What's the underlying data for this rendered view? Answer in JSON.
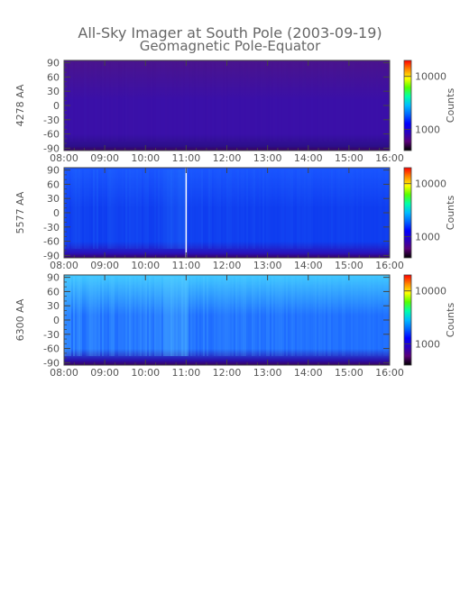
{
  "chart_data": {
    "type": "heatmap",
    "title": "All-Sky Imager at South Pole (2003-09-19)",
    "subtitle": "Geomagnetic Pole-Equator",
    "x_tick_labels": [
      "08:00",
      "09:00",
      "10:00",
      "11:00",
      "12:00",
      "13:00",
      "14:00",
      "15:00",
      "16:00"
    ],
    "xlim": [
      8,
      16
    ],
    "y_ticks": [
      -90,
      -60,
      -30,
      0,
      30,
      60,
      90
    ],
    "ylim": [
      -95,
      95
    ],
    "colorbar": {
      "label": "Counts",
      "scale": "log",
      "ticks": [
        1000,
        10000
      ],
      "colors": [
        "#000000",
        "#5a0078",
        "#2a00c0",
        "#0000ff",
        "#0066ff",
        "#00bbff",
        "#00ffaa",
        "#55ff00",
        "#ffff00",
        "#ff8800",
        "#ff0000"
      ]
    },
    "panels": [
      {
        "ylabel": "4278 AA",
        "description_level": "low",
        "base_color": "#3a10a8"
      },
      {
        "ylabel": "5577 AA",
        "description_level": "medium",
        "base_color": "#0f3cf0",
        "data_gap_time": 11.0
      },
      {
        "ylabel": "6300 AA",
        "description_level": "high",
        "base_color": "#1e6cff"
      }
    ]
  }
}
